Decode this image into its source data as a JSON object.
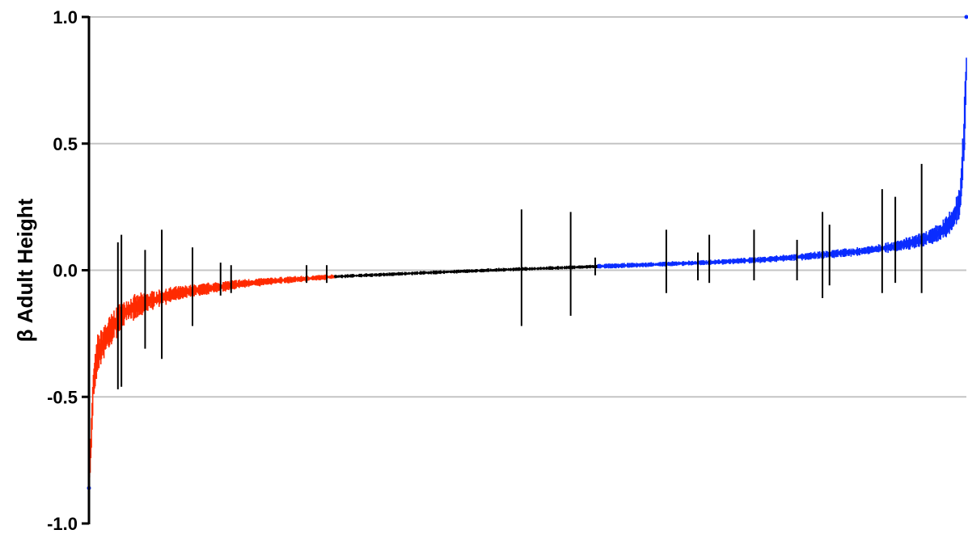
{
  "chart_data": {
    "type": "scatter",
    "title": "",
    "xlabel": "",
    "ylabel": "β Adult Height",
    "ylim": [
      -1.0,
      1.0
    ],
    "yticks": [
      {
        "value": 1.0,
        "label": "1.0"
      },
      {
        "value": 0.5,
        "label": "0.5"
      },
      {
        "value": 0.0,
        "label": "0.0"
      },
      {
        "value": -0.5,
        "label": "-0.5"
      },
      {
        "value": -1.0,
        "label": "-1.0"
      }
    ],
    "grid": true,
    "legend": "none",
    "x_description": "variants ranked by effect estimate",
    "series": [
      {
        "color": "#ff2a00",
        "ranked_points": [
          [
            0.0,
            -0.85,
            0.0
          ],
          [
            0.002,
            -0.72,
            0.06
          ],
          [
            0.005,
            -0.45,
            0.05
          ],
          [
            0.01,
            -0.33,
            0.06
          ],
          [
            0.02,
            -0.26,
            0.05
          ],
          [
            0.03,
            -0.21,
            0.05
          ],
          [
            0.04,
            -0.17,
            0.04
          ],
          [
            0.05,
            -0.15,
            0.04
          ],
          [
            0.07,
            -0.12,
            0.03
          ],
          [
            0.09,
            -0.1,
            0.025
          ],
          [
            0.11,
            -0.085,
            0.02
          ],
          [
            0.14,
            -0.07,
            0.018
          ],
          [
            0.17,
            -0.055,
            0.015
          ],
          [
            0.2,
            -0.045,
            0.012
          ],
          [
            0.24,
            -0.035,
            0.01
          ],
          [
            0.28,
            -0.025,
            0.008
          ]
        ]
      },
      {
        "color": "#000000",
        "ranked_points": [
          [
            0.28,
            -0.025,
            0.006
          ],
          [
            0.35,
            -0.015,
            0.006
          ],
          [
            0.42,
            -0.005,
            0.006
          ],
          [
            0.48,
            0.003,
            0.006
          ],
          [
            0.54,
            0.01,
            0.006
          ],
          [
            0.58,
            0.015,
            0.006
          ]
        ]
      },
      {
        "color": "#0a2cff",
        "ranked_points": [
          [
            0.58,
            0.015,
            0.008
          ],
          [
            0.64,
            0.022,
            0.008
          ],
          [
            0.7,
            0.03,
            0.008
          ],
          [
            0.76,
            0.04,
            0.01
          ],
          [
            0.82,
            0.055,
            0.012
          ],
          [
            0.88,
            0.075,
            0.014
          ],
          [
            0.92,
            0.095,
            0.018
          ],
          [
            0.95,
            0.12,
            0.022
          ],
          [
            0.97,
            0.15,
            0.028
          ],
          [
            0.985,
            0.2,
            0.04
          ],
          [
            0.993,
            0.28,
            0.05
          ],
          [
            0.997,
            0.5,
            0.08
          ],
          [
            1.0,
            0.8,
            0.1
          ]
        ]
      }
    ],
    "outlier_bars": [
      {
        "rank": 0.033,
        "y": -0.18,
        "lo": -0.47,
        "hi": 0.11
      },
      {
        "rank": 0.037,
        "y": -0.16,
        "lo": -0.46,
        "hi": 0.14
      },
      {
        "rank": 0.064,
        "y": -0.09,
        "lo": -0.31,
        "hi": 0.08
      },
      {
        "rank": 0.083,
        "y": -0.1,
        "lo": -0.35,
        "hi": 0.16
      },
      {
        "rank": 0.118,
        "y": -0.07,
        "lo": -0.22,
        "hi": 0.09
      },
      {
        "rank": 0.15,
        "y": -0.06,
        "lo": -0.1,
        "hi": 0.03
      },
      {
        "rank": 0.162,
        "y": -0.05,
        "lo": -0.09,
        "hi": 0.02
      },
      {
        "rank": 0.248,
        "y": -0.02,
        "lo": -0.05,
        "hi": 0.02
      },
      {
        "rank": 0.271,
        "y": -0.02,
        "lo": -0.05,
        "hi": 0.02
      },
      {
        "rank": 0.493,
        "y": 0.01,
        "lo": -0.22,
        "hi": 0.24
      },
      {
        "rank": 0.549,
        "y": 0.02,
        "lo": -0.18,
        "hi": 0.23
      },
      {
        "rank": 0.577,
        "y": 0.02,
        "lo": -0.02,
        "hi": 0.05
      },
      {
        "rank": 0.658,
        "y": 0.03,
        "lo": -0.09,
        "hi": 0.16
      },
      {
        "rank": 0.694,
        "y": 0.04,
        "lo": -0.04,
        "hi": 0.07
      },
      {
        "rank": 0.707,
        "y": 0.04,
        "lo": -0.05,
        "hi": 0.14
      },
      {
        "rank": 0.758,
        "y": 0.05,
        "lo": -0.04,
        "hi": 0.16
      },
      {
        "rank": 0.807,
        "y": 0.07,
        "lo": -0.04,
        "hi": 0.12
      },
      {
        "rank": 0.836,
        "y": 0.08,
        "lo": -0.11,
        "hi": 0.23
      },
      {
        "rank": 0.844,
        "y": 0.08,
        "lo": -0.06,
        "hi": 0.18
      },
      {
        "rank": 0.904,
        "y": 0.11,
        "lo": -0.09,
        "hi": 0.32
      },
      {
        "rank": 0.919,
        "y": 0.12,
        "lo": -0.05,
        "hi": 0.29
      },
      {
        "rank": 0.949,
        "y": 0.14,
        "lo": -0.09,
        "hi": 0.42
      }
    ],
    "endpoint_markers": [
      {
        "rank": 0.0,
        "y": -0.86,
        "color": "#0a2cff"
      },
      {
        "rank": 1.0,
        "y": 1.0,
        "color": "#0a2cff"
      }
    ]
  }
}
